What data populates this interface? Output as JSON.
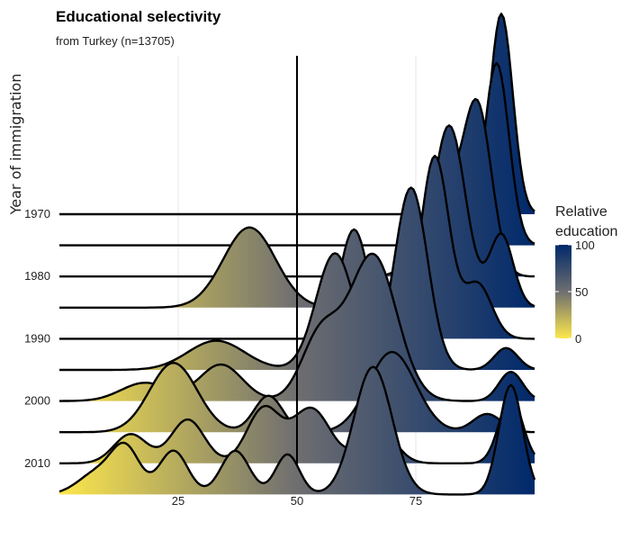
{
  "chart_data": {
    "type": "ridgeline",
    "title": "Educational selectivity",
    "subtitle": "from Turkey (n=13705)",
    "ylabel": "Year of immigration",
    "xlabel": "",
    "xlim": [
      0,
      100
    ],
    "x_ticks": [
      25,
      50,
      75
    ],
    "y_ticks": [
      "1970",
      "1980",
      "1990",
      "2000",
      "2010"
    ],
    "reference_line_x": 50,
    "grid": true,
    "legend": {
      "title_line1": "Relative",
      "title_line2": "education",
      "position": "right",
      "ticks": [
        0,
        50,
        100
      ],
      "colors": {
        "low": "#fde74c",
        "mid": "#6e6e70",
        "high": "#00296b"
      }
    },
    "series": [
      {
        "year": 1970,
        "peaks": [
          [
            93,
            0.055,
            2.4
          ]
        ]
      },
      {
        "year": 1975,
        "peaks": [
          [
            92,
            0.05,
            2.6
          ]
        ]
      },
      {
        "year": 1980,
        "peaks": [
          [
            88,
            0.045,
            3.0
          ],
          [
            80,
            0.025,
            4.0
          ]
        ]
      },
      {
        "year": 1985,
        "peaks": [
          [
            40,
            0.022,
            5.5
          ],
          [
            82,
            0.05,
            3.5
          ],
          [
            93,
            0.02,
            2.5
          ]
        ]
      },
      {
        "year": 1990,
        "peaks": [
          [
            79,
            0.05,
            3.0
          ],
          [
            62,
            0.03,
            3.0
          ],
          [
            88,
            0.015,
            3.0
          ]
        ]
      },
      {
        "year": 1995,
        "peaks": [
          [
            74,
            0.05,
            3.5
          ],
          [
            58,
            0.032,
            4.0
          ],
          [
            33,
            0.008,
            6.0
          ],
          [
            94,
            0.006,
            2.5
          ]
        ]
      },
      {
        "year": 2000,
        "peaks": [
          [
            66,
            0.04,
            5.0
          ],
          [
            55,
            0.018,
            4.0
          ],
          [
            34,
            0.01,
            4.5
          ],
          [
            18,
            0.005,
            5.0
          ],
          [
            95,
            0.008,
            2.5
          ]
        ]
      },
      {
        "year": 2005,
        "peaks": [
          [
            24,
            0.019,
            5.0
          ],
          [
            44,
            0.01,
            3.0
          ],
          [
            70,
            0.022,
            5.0
          ],
          [
            90,
            0.005,
            3.0
          ]
        ]
      },
      {
        "year": 2010,
        "peaks": [
          [
            53,
            0.015,
            4.0
          ],
          [
            43,
            0.015,
            3.5
          ],
          [
            27,
            0.012,
            3.5
          ],
          [
            15,
            0.008,
            3.5
          ],
          [
            67,
            0.01,
            3.5
          ],
          [
            95,
            0.018,
            2.5
          ]
        ]
      },
      {
        "year": 2015,
        "peaks": [
          [
            66,
            0.035,
            4.0
          ],
          [
            95,
            0.03,
            2.5
          ],
          [
            14,
            0.012,
            3.0
          ],
          [
            24,
            0.012,
            3.0
          ],
          [
            37,
            0.012,
            3.0
          ],
          [
            48,
            0.011,
            2.5
          ],
          [
            8,
            0.006,
            4.0
          ]
        ]
      }
    ]
  }
}
